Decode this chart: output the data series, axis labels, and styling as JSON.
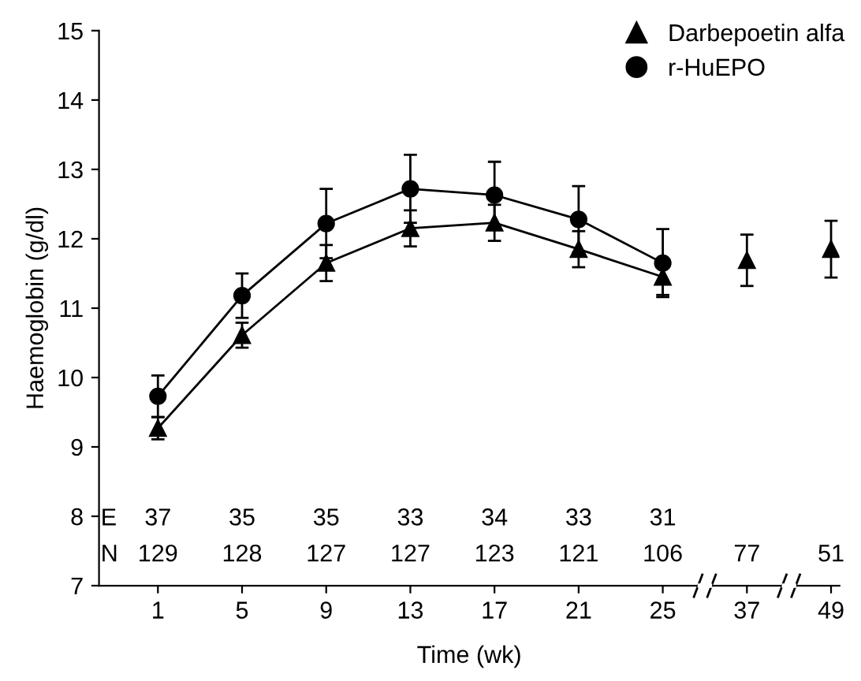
{
  "chart_data": {
    "type": "line",
    "xlabel": "Time (wk)",
    "ylabel": "Haemoglobin (g/dl)",
    "categories": [
      "1",
      "5",
      "9",
      "13",
      "17",
      "21",
      "25",
      "37",
      "49"
    ],
    "ylim": [
      7,
      15
    ],
    "yticks": [
      7,
      8,
      9,
      10,
      11,
      12,
      13,
      14,
      15
    ],
    "grid": false,
    "legend": "top right",
    "series": [
      {
        "name": "Darbepoetin alfa",
        "color": "#000000",
        "marker": "triangle",
        "values": [
          9.27,
          10.61,
          11.65,
          12.15,
          12.23,
          11.85,
          11.45,
          null,
          null
        ],
        "errors": [
          0.16,
          0.18,
          0.26,
          0.26,
          0.26,
          0.26,
          0.26,
          null,
          null
        ]
      },
      {
        "name": "r-HuEPO",
        "color": "#000000",
        "marker": "circle",
        "values": [
          9.73,
          11.18,
          12.22,
          12.72,
          12.63,
          12.28,
          11.65,
          null,
          null
        ],
        "errors": [
          0.3,
          0.32,
          0.5,
          0.49,
          0.48,
          0.48,
          0.49,
          null,
          null
        ]
      },
      {
        "type": "scatter",
        "color": "#000000",
        "marker": "triangle",
        "x": [
          "37",
          "49"
        ],
        "values": [
          11.69,
          11.85
        ],
        "errors": [
          0.37,
          0.41
        ]
      }
    ],
    "annotations": [
      "E",
      "37",
      "35",
      "35",
      "33",
      "34",
      "33",
      "31",
      "N",
      "129",
      "128",
      "127",
      "127",
      "123",
      "121",
      "106",
      "77",
      "51"
    ]
  }
}
